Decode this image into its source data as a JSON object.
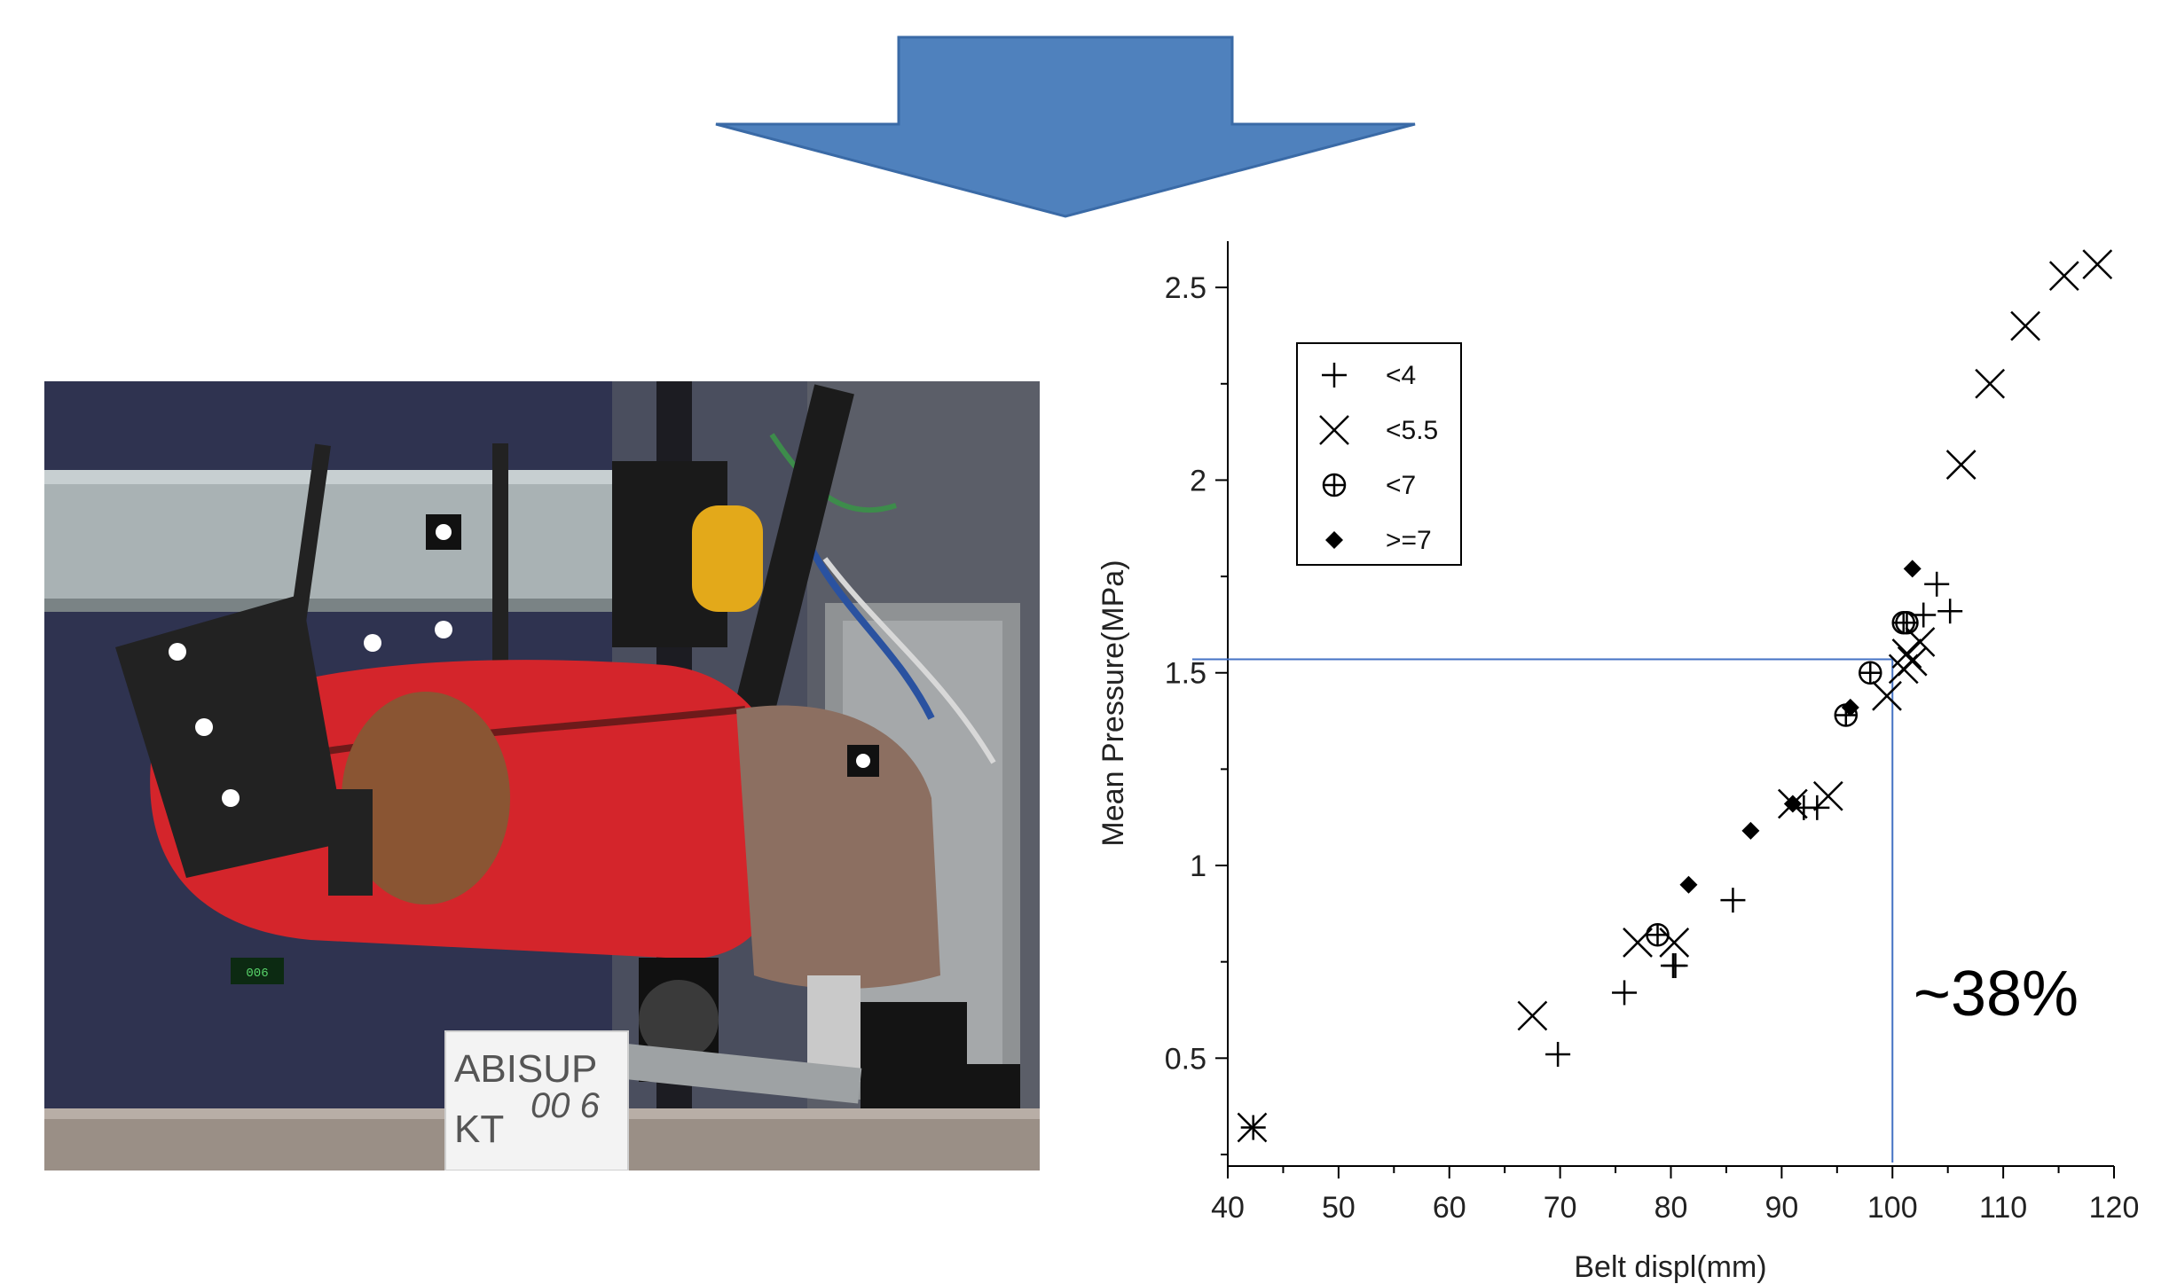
{
  "photo": {
    "sign_line1": "ABISUP",
    "sign_line2": "KT",
    "sign_handwritten": "00 6",
    "display_readout": "006"
  },
  "chart_data": {
    "type": "scatter",
    "title": "",
    "xlabel": "Belt displ(mm)",
    "ylabel": "Mean Pressure(MPa)",
    "xlim": [
      40,
      120
    ],
    "ylim": [
      0.22,
      2.62
    ],
    "xticks": [
      "40",
      "50",
      "60",
      "70",
      "80",
      "90",
      "100",
      "110",
      "120"
    ],
    "yticks": [
      "0.5",
      "1",
      "1.5",
      "2",
      "2.5"
    ],
    "grid": false,
    "legend_position": "top-left",
    "series": [
      {
        "name": "<4",
        "marker": "plus",
        "points": [
          [
            42.3,
            0.32
          ],
          [
            69.8,
            0.51
          ],
          [
            75.8,
            0.67
          ],
          [
            80.2,
            0.74
          ],
          [
            80.4,
            0.74
          ],
          [
            85.6,
            0.91
          ],
          [
            92.0,
            1.15
          ],
          [
            93.2,
            1.15
          ],
          [
            102.8,
            1.65
          ],
          [
            104.0,
            1.73
          ],
          [
            105.2,
            1.66
          ]
        ]
      },
      {
        "name": "<5.5",
        "marker": "x",
        "points": [
          [
            42.2,
            0.32
          ],
          [
            67.5,
            0.61
          ],
          [
            77.0,
            0.8
          ],
          [
            80.3,
            0.8
          ],
          [
            91.0,
            1.16
          ],
          [
            94.2,
            1.18
          ],
          [
            99.5,
            1.44
          ],
          [
            101.0,
            1.51
          ],
          [
            101.3,
            1.55
          ],
          [
            101.8,
            1.53
          ],
          [
            102.5,
            1.58
          ],
          [
            106.2,
            2.04
          ],
          [
            108.8,
            2.25
          ],
          [
            112.0,
            2.4
          ],
          [
            115.5,
            2.53
          ],
          [
            118.5,
            2.56
          ]
        ]
      },
      {
        "name": "<7",
        "marker": "circle-plus",
        "points": [
          [
            78.8,
            0.82
          ],
          [
            95.8,
            1.39
          ],
          [
            98.0,
            1.5
          ],
          [
            101.0,
            1.63
          ],
          [
            101.3,
            1.63
          ]
        ]
      },
      {
        "name": ">=7",
        "marker": "diamond",
        "points": [
          [
            81.6,
            0.95
          ],
          [
            87.2,
            1.09
          ],
          [
            91.0,
            1.16
          ],
          [
            96.2,
            1.41
          ],
          [
            101.8,
            1.77
          ]
        ]
      }
    ],
    "reference_lines": {
      "x": 100,
      "y": 1.535
    },
    "annotation": "~38%",
    "colors": {
      "reference_line": "#4472c4",
      "markers": "#000000",
      "arrow_fill": "#4f81bd",
      "arrow_stroke": "#3a6aa6"
    }
  }
}
